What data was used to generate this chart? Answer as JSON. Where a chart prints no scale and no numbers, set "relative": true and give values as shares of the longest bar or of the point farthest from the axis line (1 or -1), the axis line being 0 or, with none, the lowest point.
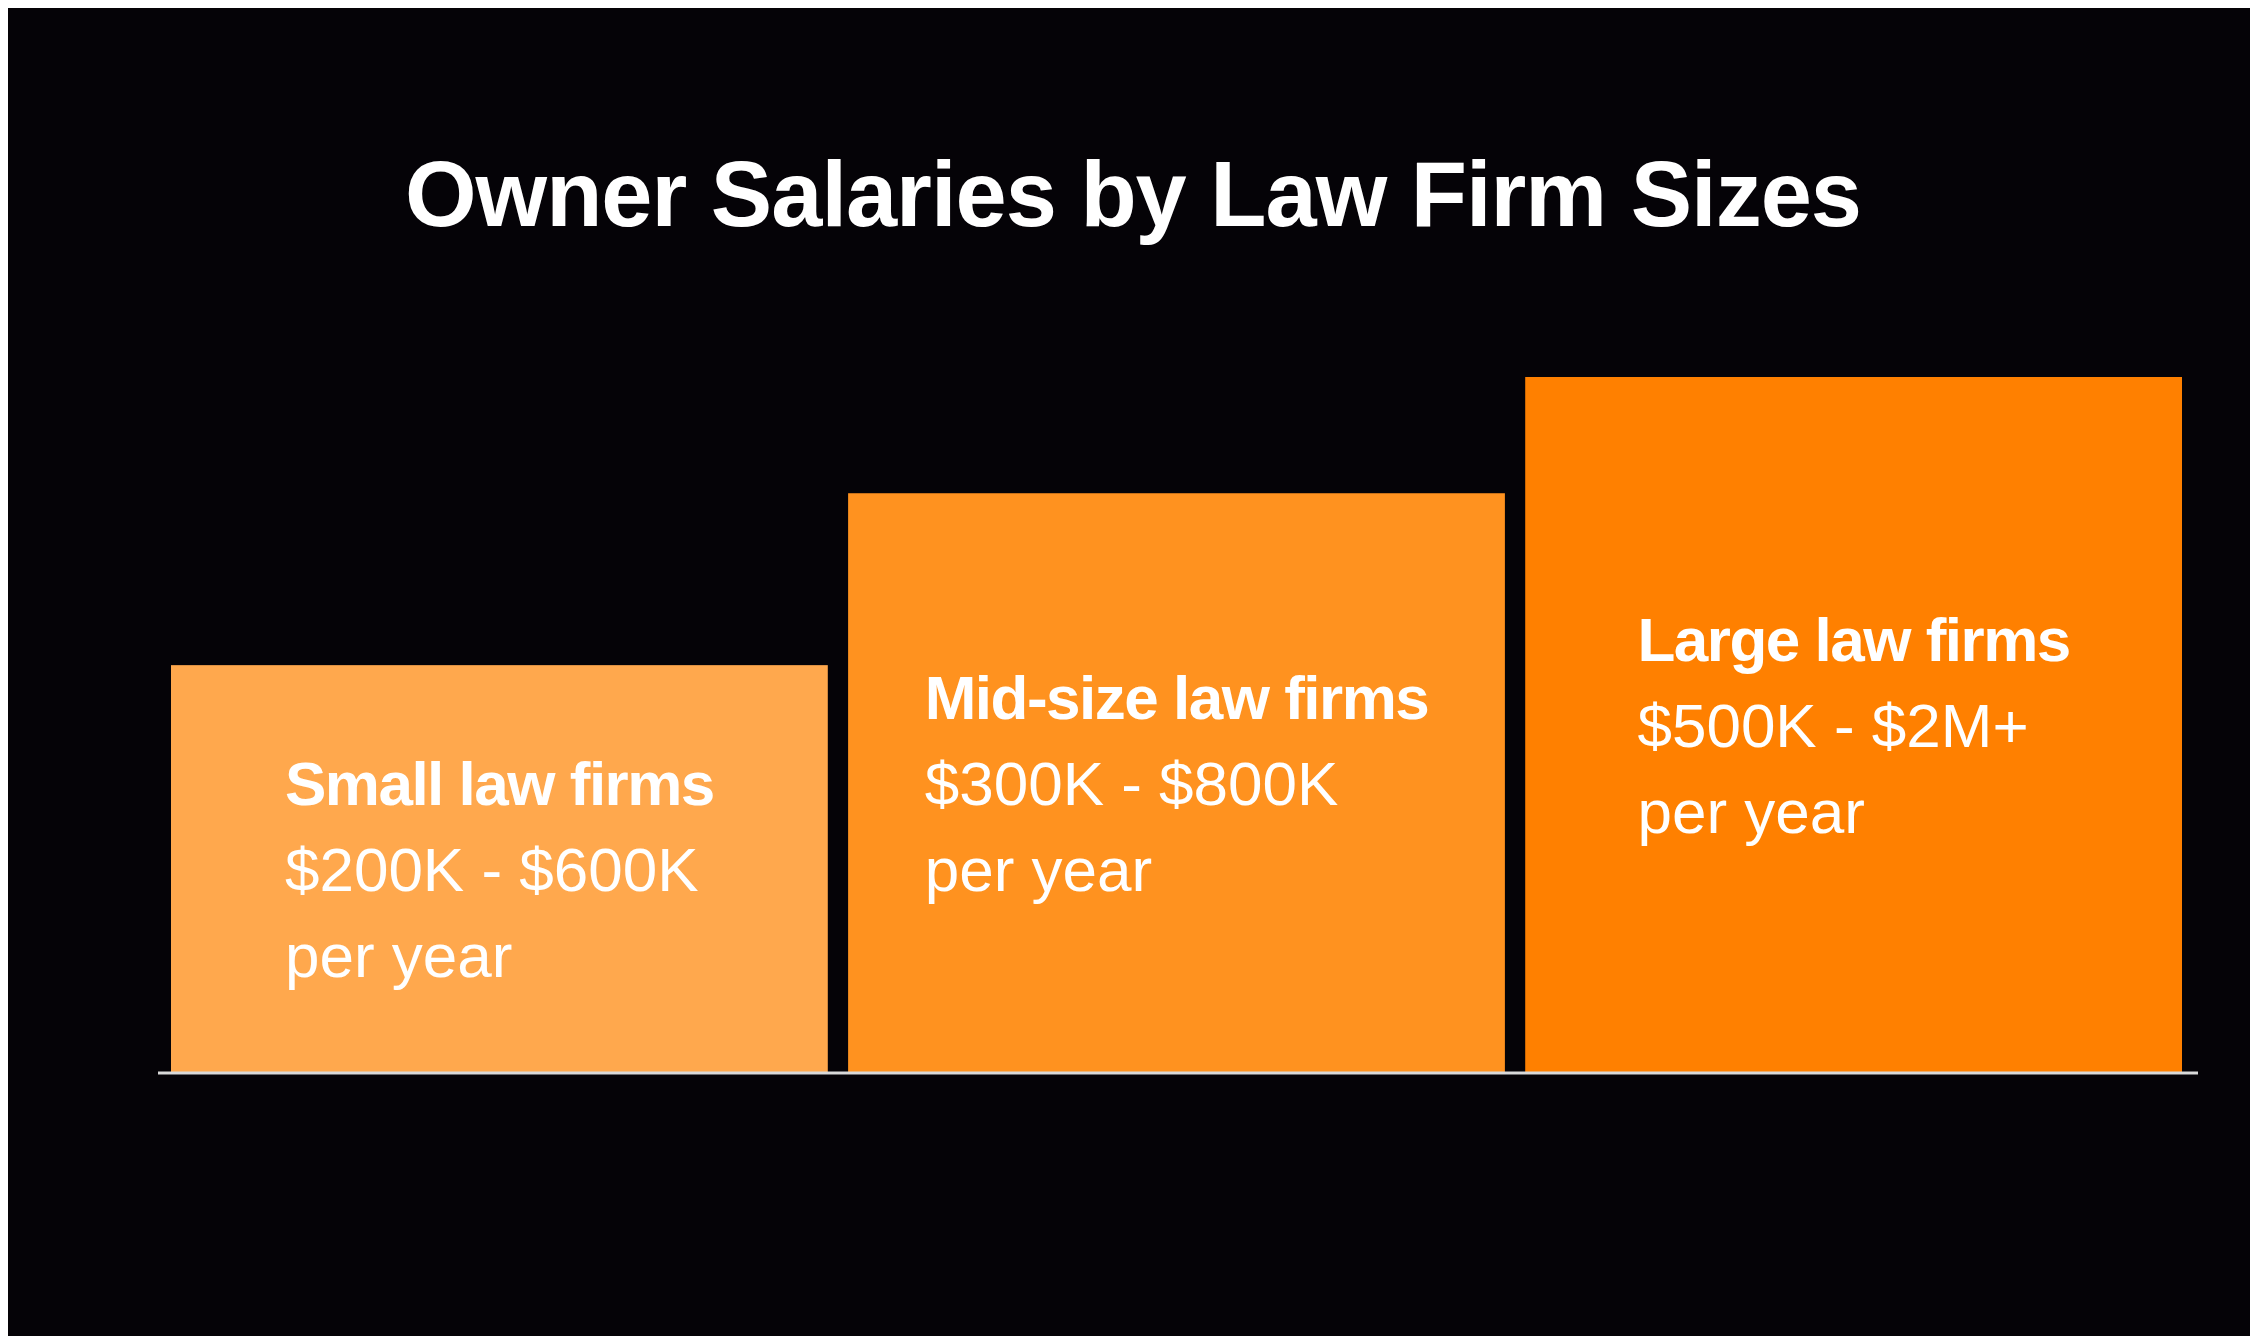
{
  "chart_data": {
    "type": "bar",
    "title": "Owner Salaries by Law Firm Sizes",
    "relative": true,
    "categories": [
      "Small law firms",
      "Mid-size law firms",
      "Large law firms"
    ],
    "values": [
      0.586,
      0.833,
      1
    ],
    "colors": [
      "#ffa84d",
      "#ff921f",
      "#ff8000"
    ],
    "annotations": [
      "$200K - $600K\nper year",
      "$300K - $800K\nper year",
      "$500K - $2M+\nper year"
    ]
  }
}
